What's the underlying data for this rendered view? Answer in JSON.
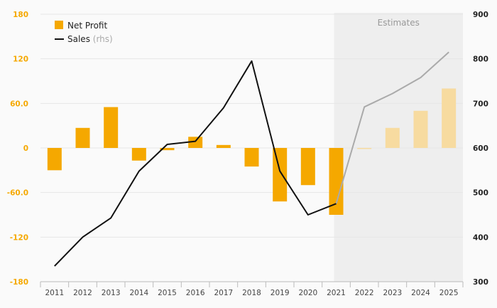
{
  "chart_data": {
    "type": "bar+line",
    "categories": [
      "2011",
      "2012",
      "2013",
      "2014",
      "2015",
      "2016",
      "2017",
      "2018",
      "2019",
      "2020",
      "2021",
      "2022",
      "2023",
      "2024",
      "2025"
    ],
    "series": [
      {
        "name": "Net Profit",
        "kind": "bar",
        "axis": "left",
        "color": "#f5a800",
        "estimate_color": "#f7dba0",
        "values": [
          -30,
          27,
          55,
          -17,
          -3,
          15,
          4,
          -25,
          -72,
          -50,
          -90,
          -1,
          27,
          50,
          80
        ]
      },
      {
        "name": "Sales",
        "name_suffix": "(rhs)",
        "kind": "line",
        "axis": "right",
        "color": "#111111",
        "estimate_color": "#aaaaaa",
        "values": [
          335,
          400,
          443,
          548,
          608,
          615,
          690,
          795,
          548,
          450,
          475,
          692,
          722,
          758,
          815
        ]
      }
    ],
    "estimates_from": "2021",
    "estimates_label": "Estimates",
    "y_left": {
      "min": -180,
      "max": 180,
      "ticks": [
        "180",
        "120",
        "60.0",
        "0",
        "-60.0",
        "-120",
        "-180"
      ],
      "color": "#f5a800"
    },
    "y_right": {
      "min": 300,
      "max": 900,
      "ticks": [
        "900",
        "800",
        "700",
        "600",
        "500",
        "400",
        "300"
      ]
    },
    "grid": true,
    "legend_position": "top-left"
  }
}
